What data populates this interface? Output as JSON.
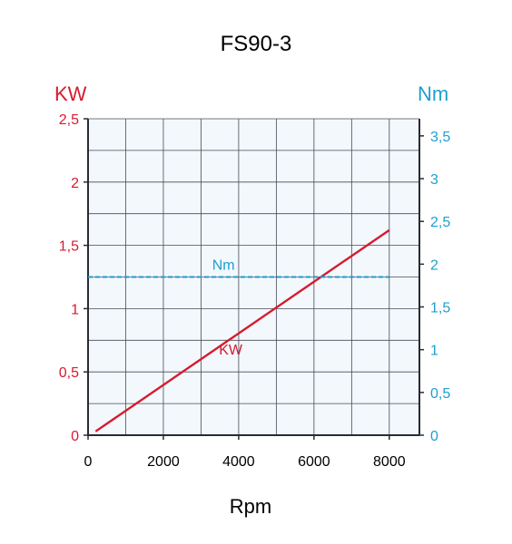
{
  "chart_data": {
    "type": "line",
    "title": "FS90-3",
    "xlabel": "Rpm",
    "ylabel_left": "KW",
    "ylabel_right": "Nm",
    "xlim": [
      0,
      8800
    ],
    "ylim_left": [
      0,
      2.5
    ],
    "ylim_right": [
      0,
      3.7
    ],
    "x_ticks": [
      "0",
      "2000",
      "4000",
      "6000",
      "8000"
    ],
    "y_left_ticks": [
      "0",
      "0,5",
      "1",
      "1,5",
      "2",
      "2,5"
    ],
    "y_right_ticks": [
      "0",
      "0,5",
      "1",
      "1,5",
      "2",
      "2,5",
      "3",
      "3,5"
    ],
    "grid": true,
    "series": [
      {
        "name": "KW",
        "axis": "left",
        "style": "solid",
        "color": "#d71a2f",
        "x": [
          200,
          8000
        ],
        "y": [
          0.03,
          1.62
        ]
      },
      {
        "name": "Nm",
        "axis": "right",
        "style": "dashed",
        "color": "#1f9ecf",
        "x": [
          0,
          8000
        ],
        "y": [
          1.85,
          1.85
        ]
      }
    ],
    "colors": {
      "kw": "#d71a2f",
      "nm": "#1f9ecf",
      "plot_bg": "#f2f8fc",
      "grid": "#4a4a55"
    }
  }
}
